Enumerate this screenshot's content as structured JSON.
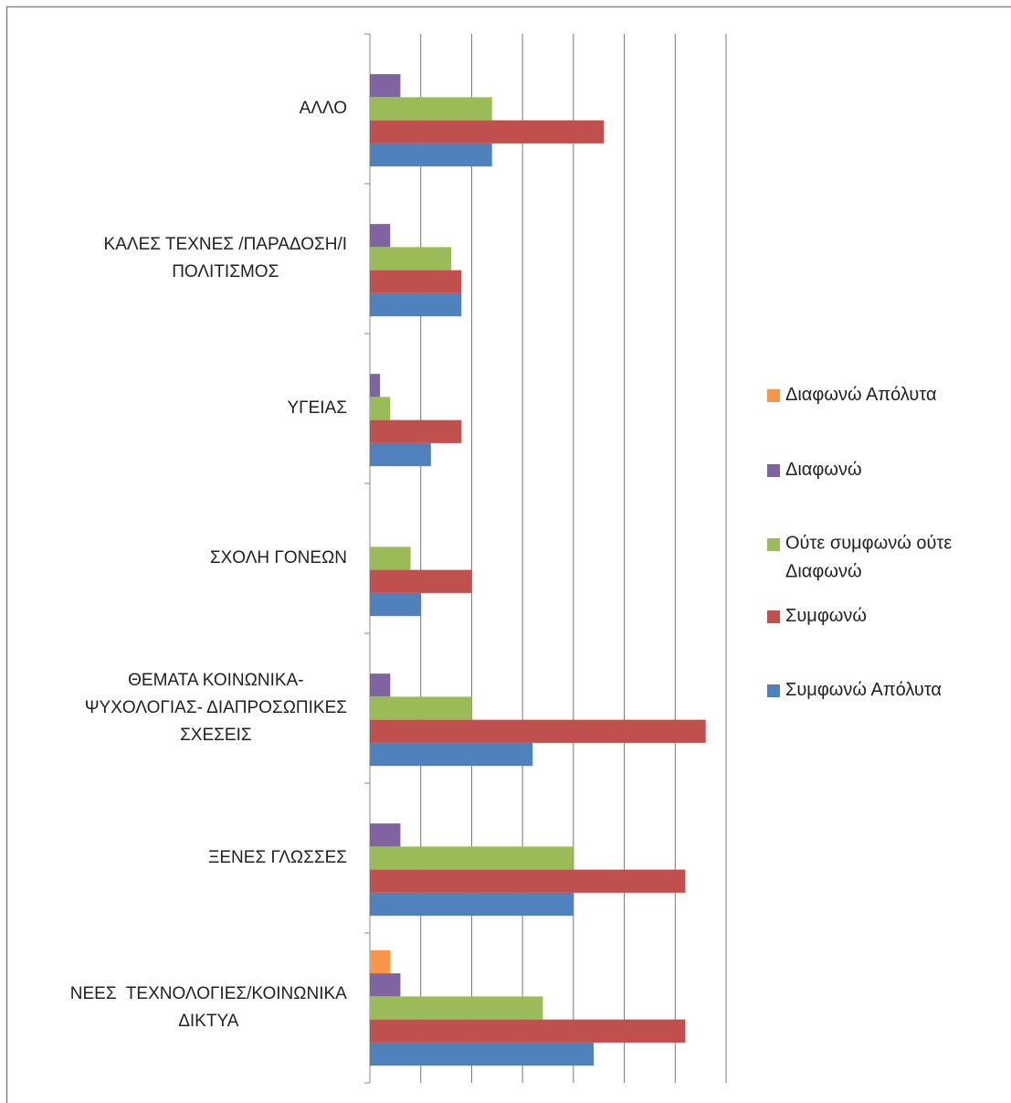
{
  "chart_data": {
    "type": "hbar",
    "categories": [
      "ΑΛΛΟ",
      "ΚΑΛΕΣ ΤΕΧΝΕΣ /ΠΑΡΑΔΟΣΗ/Ι\nΠΟΛΙΤΙΣΜΟΣ",
      "ΥΓΕΙΑΣ",
      "ΣΧΟΛΗ ΓΟΝΕΩΝ",
      "ΘΕΜΑΤΑ ΚΟΙΝΩΝΙΚΑ-\nΨΥΧΟΛΟΓΙΑΣ- ΔΙΑΠΡΟΣΩΠΙΚΕΣ\nΣΧΕΣΕΙΣ",
      "ΞΕΝΕΣ ΓΛΩΣΣΕΣ",
      "ΝΕΕΣ  ΤΕΧΝΟΛΟΓΙΕΣ/ΚΟΙΝΩΝΙΚΑ\nΔΙΚΤΥΑ"
    ],
    "series": [
      {
        "name": "Διαφωνώ Απόλυτα",
        "color": "#f79646",
        "values": [
          0,
          0,
          0,
          0,
          0,
          0,
          2
        ]
      },
      {
        "name": "Διαφωνώ",
        "color": "#8064a2",
        "values": [
          3,
          2,
          1,
          0,
          2,
          3,
          3
        ]
      },
      {
        "name": "Ούτε συμφωνώ ούτε\nΔιαφωνώ",
        "color": "#9bbb59",
        "values": [
          12,
          8,
          2,
          4,
          10,
          20,
          17
        ]
      },
      {
        "name": "Συμφωνώ",
        "color": "#c0504d",
        "values": [
          23,
          9,
          9,
          10,
          33,
          31,
          31
        ]
      },
      {
        "name": "Συμφωνώ Απόλυτα",
        "color": "#4f81bd",
        "values": [
          12,
          9,
          6,
          5,
          16,
          20,
          22
        ]
      }
    ],
    "xlim": [
      0,
      35
    ],
    "xticks": [
      0,
      5,
      10,
      15,
      20,
      25,
      30,
      35
    ],
    "grid": true,
    "legend": "right"
  }
}
